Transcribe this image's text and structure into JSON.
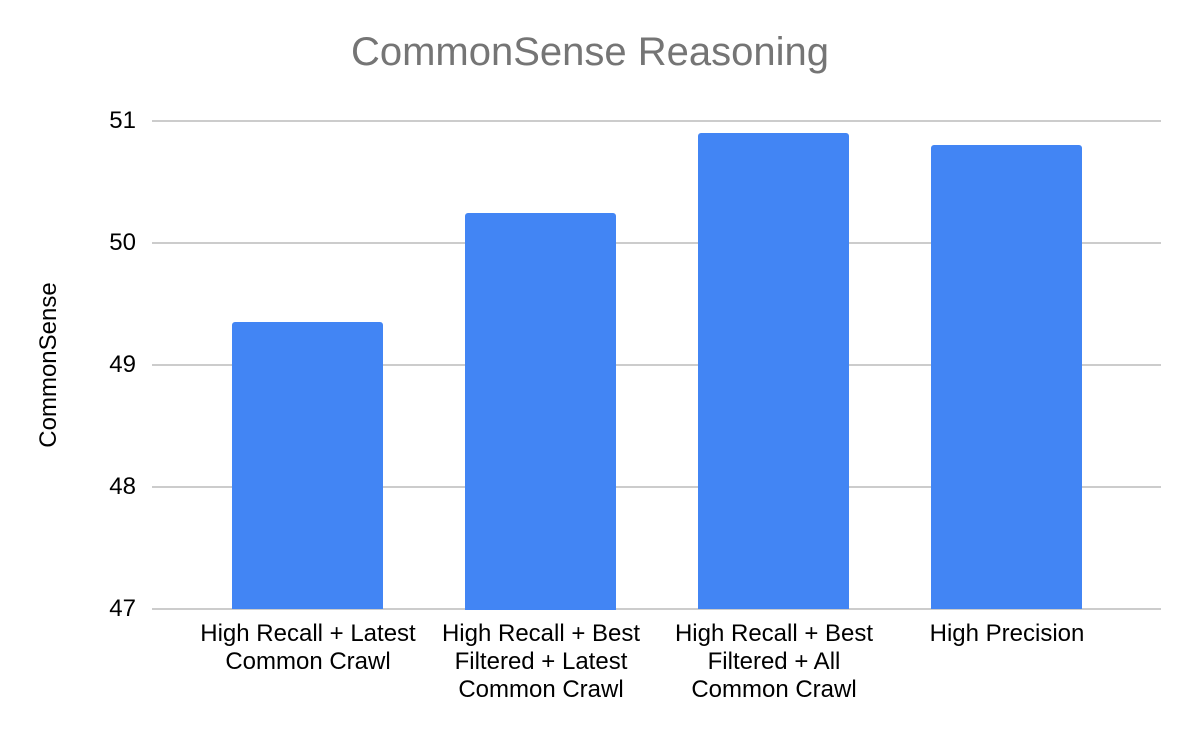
{
  "chart_data": {
    "type": "bar",
    "title": "CommonSense Reasoning",
    "ylabel": "CommonSense",
    "xlabel": "",
    "categories": [
      "High Recall + Latest Common Crawl",
      "High Recall + Best Filtered + Latest Common Crawl",
      "High Recall + Best Filtered + All Common Crawl",
      "High Precision"
    ],
    "values": [
      49.35,
      50.25,
      50.9,
      50.8
    ],
    "ylim": [
      47,
      51
    ],
    "yticks": [
      47,
      48,
      49,
      50,
      51
    ],
    "grid": "horizontal",
    "legend": "none",
    "colors": {
      "bar": "#4285f4",
      "title": "#757575",
      "axis_text": "#000000",
      "gridline": "#cccccc",
      "background": "#ffffff"
    }
  }
}
